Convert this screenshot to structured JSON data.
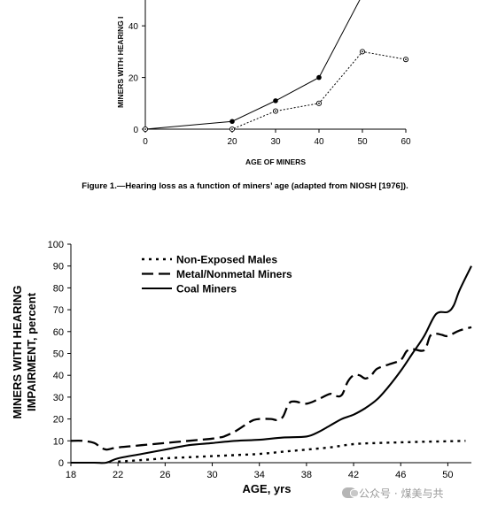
{
  "chart_data": [
    {
      "type": "line",
      "title": "",
      "xlabel": "AGE OF MINERS",
      "ylabel": "MINERS WITH HEARING I",
      "xlim": [
        0,
        60
      ],
      "ylim": [
        0,
        50
      ],
      "xticks": [
        "0",
        "20",
        "30",
        "40",
        "50",
        "60"
      ],
      "yticks": [
        "0",
        "20",
        "40"
      ],
      "grid": false,
      "legend": "none",
      "series": [
        {
          "style": "solid-filled-markers",
          "x": [
            0,
            20,
            30,
            40,
            50
          ],
          "y": [
            0,
            3,
            11,
            20,
            52
          ]
        },
        {
          "style": "dotted-open-markers",
          "x": [
            0,
            20,
            30,
            40,
            50,
            60
          ],
          "y": [
            0,
            0,
            7,
            10,
            30,
            27
          ]
        }
      ]
    },
    {
      "type": "line",
      "title": "",
      "xlabel": "AGE, yrs",
      "ylabel": "MINERS WITH HEARING IMPAIRMENT, percent",
      "xlim": [
        18,
        52
      ],
      "ylim": [
        0,
        100
      ],
      "xticks": [
        "18",
        "22",
        "26",
        "30",
        "34",
        "38",
        "42",
        "46",
        "50"
      ],
      "yticks": [
        "0",
        "10",
        "20",
        "30",
        "40",
        "50",
        "60",
        "70",
        "80",
        "90",
        "100"
      ],
      "grid": false,
      "legend": "top-left",
      "series": [
        {
          "name": "Non-Exposed Males",
          "style": "dotted",
          "x": [
            22,
            24,
            26,
            28,
            30,
            32,
            34,
            36,
            38,
            40,
            42,
            44,
            46,
            48,
            50,
            51.5
          ],
          "y": [
            0.5,
            1.2,
            2,
            2.5,
            3,
            3.5,
            4,
            5,
            6,
            7,
            8.5,
            9,
            9.3,
            9.6,
            9.8,
            10
          ]
        },
        {
          "name": "Metal/Nonmetal Miners",
          "style": "dashed",
          "x": [
            18,
            19,
            20,
            20.5,
            21,
            21.5,
            22,
            23,
            24,
            25,
            26,
            27,
            28,
            29,
            30,
            30.5,
            31,
            32,
            33,
            33.5,
            34,
            35,
            35.5,
            36,
            36.5,
            37,
            38,
            39,
            40,
            40.5,
            41,
            41.5,
            42,
            42.5,
            43,
            43.5,
            44,
            45,
            46,
            46.5,
            47,
            48,
            48.5,
            49,
            49.5,
            50,
            51,
            52
          ],
          "y": [
            10,
            10,
            9,
            7,
            6,
            6.5,
            7,
            7.5,
            8,
            8.5,
            9,
            9.5,
            10,
            10.5,
            11,
            11.5,
            12,
            14.5,
            18,
            19.5,
            20,
            20,
            19.5,
            21,
            27,
            28,
            27,
            29,
            31.5,
            30.5,
            31,
            37,
            40,
            40,
            38.5,
            40,
            43,
            45,
            47,
            51,
            52,
            51.5,
            58,
            59,
            58.5,
            58,
            60.5,
            62
          ]
        },
        {
          "name": "Coal Miners",
          "style": "solid",
          "x": [
            18,
            20,
            21,
            22,
            24,
            26,
            28,
            30,
            32,
            34,
            36,
            38,
            39,
            40,
            41,
            42,
            43,
            44,
            45,
            46,
            47,
            48,
            49,
            50,
            50.5,
            51,
            52
          ],
          "y": [
            0,
            0,
            0,
            2,
            4,
            6,
            8,
            9,
            10,
            10.5,
            11.5,
            12,
            14,
            17,
            20,
            22,
            25,
            29,
            35,
            42,
            50,
            58,
            68,
            69,
            72,
            79,
            90
          ]
        }
      ]
    }
  ],
  "caption": "Figure 1.—Hearing loss as a function of miners’ age (adapted from NIOSH [1976]).",
  "watermark": {
    "icon": "wechat-icon",
    "text": "公众号 · 煤美与共"
  }
}
